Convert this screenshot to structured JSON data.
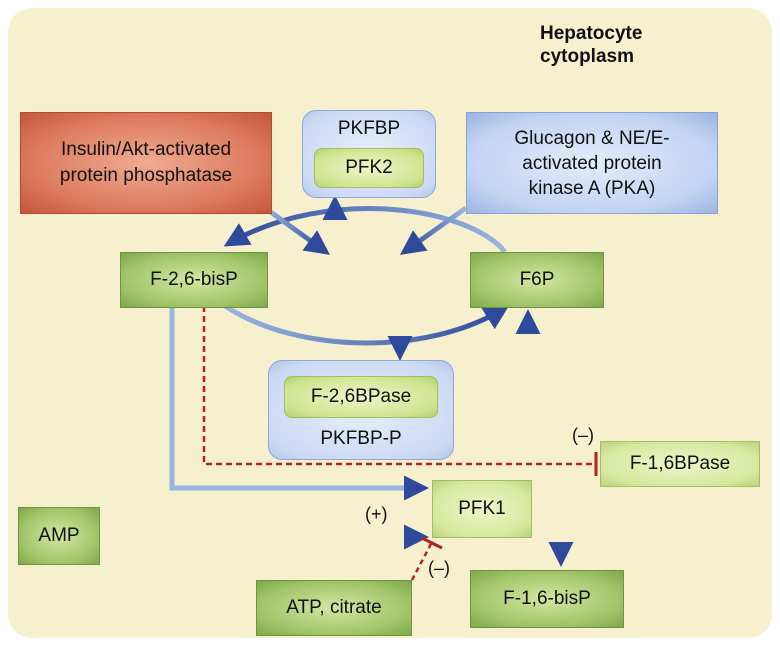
{
  "title": {
    "line1": "Hepatocyte",
    "line2": "cytoplasm"
  },
  "nodes": {
    "insulin": {
      "line1": "Insulin/Akt-activated",
      "line2": "protein phosphatase"
    },
    "glucagon": {
      "line1": "Glucagon & NE/E-",
      "line2": "activated protein",
      "line3": "kinase A (PKA)"
    },
    "pkfbp": {
      "label": "PKFBP",
      "inner": "PFK2"
    },
    "pkfbp_p": {
      "label": "PKFBP-P",
      "inner": "F-2,6BPase"
    },
    "f26bisp": "F-2,6-bisP",
    "f6p": "F6P",
    "f16bpase": "F-1,6BPase",
    "pfk1": "PFK1",
    "amp": "AMP",
    "atp_citrate": "ATP, citrate",
    "f16bisp": "F-1,6-bisP"
  },
  "signs": {
    "activation": "(+)",
    "inhibition_pfk1": "(–)",
    "inhibition_f16bpase": "(–)"
  },
  "colors": {
    "background": "#f6f0cf",
    "arrow_dark": "#2f4a9a",
    "arrow_light": "#9ab6e0",
    "inhibition": "#b52020"
  }
}
